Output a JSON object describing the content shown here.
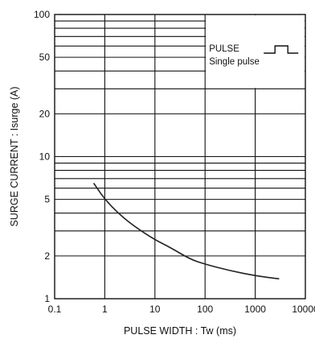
{
  "chart_data": {
    "type": "line",
    "xscale": "log",
    "yscale": "log",
    "xlim": [
      0.1,
      10000
    ],
    "ylim": [
      1,
      100
    ],
    "xlabel": "PULSE  WIDTH : Tw (ms)",
    "ylabel": "SURGE  CURRENT : Isurge (A)",
    "xticks": [
      "0.1",
      "1",
      "10",
      "100",
      "1000",
      "10000"
    ],
    "yticks": [
      {
        "v": 1,
        "label": "1"
      },
      {
        "v": 2,
        "label": "2"
      },
      {
        "v": 5,
        "label": "5"
      },
      {
        "v": 10,
        "label": "10"
      },
      {
        "v": 20,
        "label": "20"
      },
      {
        "v": 50,
        "label": "50"
      },
      {
        "v": 100,
        "label": "100"
      }
    ],
    "ygrid": [
      2,
      3,
      4,
      5,
      6,
      7,
      8,
      9,
      10,
      20,
      30,
      40,
      50,
      60,
      70,
      80,
      90
    ],
    "xgrid": [
      1,
      10,
      100,
      1000
    ],
    "grid": true,
    "legend": {
      "title": "PULSE",
      "subtitle": "Single pulse",
      "placement": "top-right"
    },
    "series": [
      {
        "x": [
          0.6,
          1,
          2,
          4,
          10,
          20,
          50,
          100,
          300,
          1000,
          3000
        ],
        "y": [
          6.5,
          5.0,
          3.9,
          3.2,
          2.6,
          2.3,
          1.9,
          1.75,
          1.58,
          1.45,
          1.38
        ]
      }
    ]
  }
}
